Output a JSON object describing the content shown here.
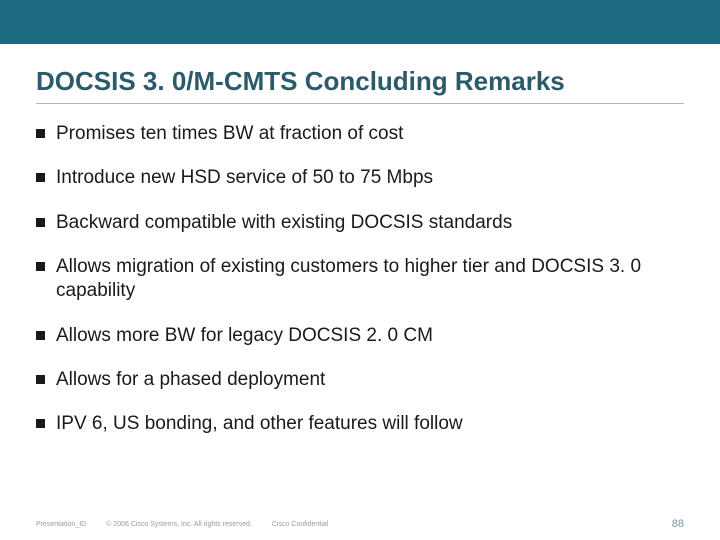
{
  "colors": {
    "top_bar": "#1b6a82",
    "title_color": "#2b5a6a",
    "rule_color": "#a7b8bf",
    "text_color": "#1a1a1a",
    "footer_color": "#9a9a9a",
    "page_num_color": "#7d97a0",
    "background": "#ffffff"
  },
  "title": "DOCSIS 3. 0/M-CMTS Concluding Remarks",
  "bullets": [
    "Promises ten times BW at fraction of cost",
    "Introduce new HSD service of 50 to 75 Mbps",
    "Backward compatible with existing DOCSIS standards",
    "Allows migration of existing customers to higher tier and DOCSIS 3. 0 capability",
    "Allows more BW for legacy DOCSIS 2. 0 CM",
    "Allows for a phased deployment",
    "IPV 6, US bonding, and other features will follow"
  ],
  "footer": {
    "presentation_id": "Presentation_ID",
    "copyright": "© 2006 Cisco Systems, Inc. All rights reserved.",
    "confidential": "Cisco Confidential",
    "page_number": "88"
  }
}
